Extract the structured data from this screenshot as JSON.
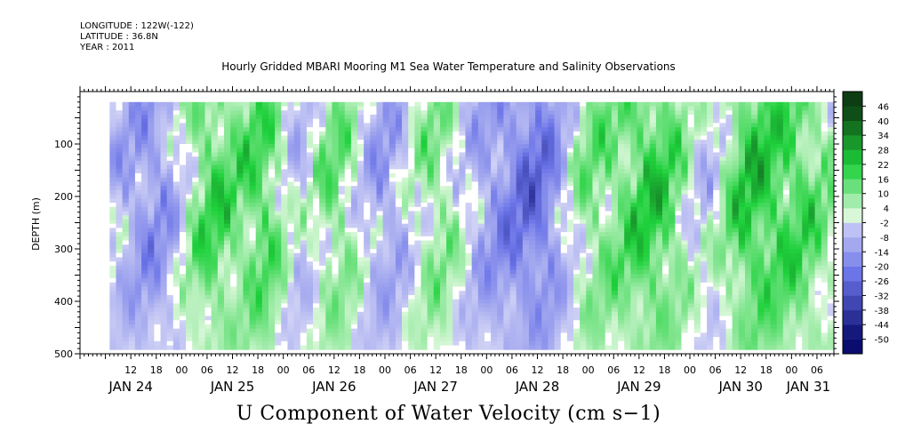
{
  "header": {
    "longitude": "LONGITUDE : 122W(-122)",
    "latitude": "LATITUDE : 36.8N",
    "year": "YEAR : 2011"
  },
  "colors": {
    "axis": "#000000",
    "positive_dark": "#0d3d12",
    "positive_mid": "#1fd13c",
    "positive_light": "#d8f7d8",
    "negative_light": "#d0d2f5",
    "negative_mid": "#6c75e8",
    "negative_dark": "#0a0d6e"
  },
  "chart_data": {
    "type": "heatmap",
    "title": "Hourly Gridded MBARI Mooring M1 Sea Water Temperature and Salinity Observations",
    "xlabel": "",
    "ylabel": "DEPTH (m)",
    "footer_label": "U Component of Water Velocity (cm s−1)",
    "y_ticks": [
      100,
      200,
      300,
      400,
      500
    ],
    "y_tick_labels": [
      "100",
      "200",
      "300",
      "400",
      "500"
    ],
    "ylim": [
      500,
      0
    ],
    "data_depth_range": [
      20,
      485
    ],
    "x_tick_labels": [
      "12",
      "18",
      "00",
      "06",
      "12",
      "18",
      "00",
      "06",
      "12",
      "18",
      "00",
      "06",
      "12",
      "18",
      "00",
      "06",
      "12",
      "18",
      "00",
      "06",
      "12",
      "18",
      "00",
      "06",
      "12",
      "18",
      "00",
      "06"
    ],
    "x_tick_hours": [
      12,
      18,
      24,
      30,
      36,
      42,
      48,
      54,
      60,
      66,
      72,
      78,
      84,
      90,
      96,
      102,
      108,
      114,
      120,
      126,
      132,
      138,
      144,
      150,
      156,
      162,
      168,
      174
    ],
    "day_labels": [
      "JAN 24",
      "JAN 25",
      "JAN 26",
      "JAN 27",
      "JAN 28",
      "JAN 29",
      "JAN 30",
      "JAN 31"
    ],
    "day_label_hours": [
      12,
      36,
      60,
      84,
      108,
      132,
      156,
      172
    ],
    "xlim_hours": [
      0,
      178
    ],
    "data_time_range_hours": [
      7,
      177
    ],
    "colorbar": {
      "levels": [
        -50,
        -44,
        -38,
        -32,
        -26,
        -20,
        -14,
        -8,
        -2,
        4,
        10,
        16,
        22,
        28,
        34,
        40,
        46
      ],
      "level_labels": [
        "-50",
        "-44",
        "-38",
        "-32",
        "-26",
        "-20",
        "-14",
        "-8",
        "-2",
        "4",
        "10",
        "16",
        "22",
        "28",
        "34",
        "40",
        "46"
      ],
      "unit": "cm s-1"
    },
    "field_pattern": {
      "description": "alternating positive (green) and negative (blue) eastward velocity bands across depth and time",
      "bands": [
        {
          "center_hour": 18,
          "width": 10,
          "sign": -1,
          "amplitude": 14
        },
        {
          "center_hour": 30,
          "width": 8,
          "sign": 1,
          "amplitude": 16
        },
        {
          "center_hour": 44,
          "width": 6,
          "sign": 1,
          "amplitude": 14
        },
        {
          "center_hour": 52,
          "width": 6,
          "sign": -1,
          "amplitude": 10
        },
        {
          "center_hour": 60,
          "width": 8,
          "sign": 1,
          "amplitude": 12
        },
        {
          "center_hour": 72,
          "width": 8,
          "sign": -1,
          "amplitude": 12
        },
        {
          "center_hour": 84,
          "width": 8,
          "sign": 1,
          "amplitude": 10
        },
        {
          "center_hour": 96,
          "width": 8,
          "sign": -1,
          "amplitude": 10
        },
        {
          "center_hour": 108,
          "width": 8,
          "sign": -1,
          "amplitude": 18
        },
        {
          "center_hour": 120,
          "width": 6,
          "sign": 1,
          "amplitude": 8
        },
        {
          "center_hour": 135,
          "width": 10,
          "sign": 1,
          "amplitude": 16
        },
        {
          "center_hour": 148,
          "width": 6,
          "sign": -1,
          "amplitude": 8
        },
        {
          "center_hour": 158,
          "width": 8,
          "sign": 1,
          "amplitude": 16
        },
        {
          "center_hour": 170,
          "width": 8,
          "sign": 1,
          "amplitude": 12
        }
      ]
    }
  }
}
